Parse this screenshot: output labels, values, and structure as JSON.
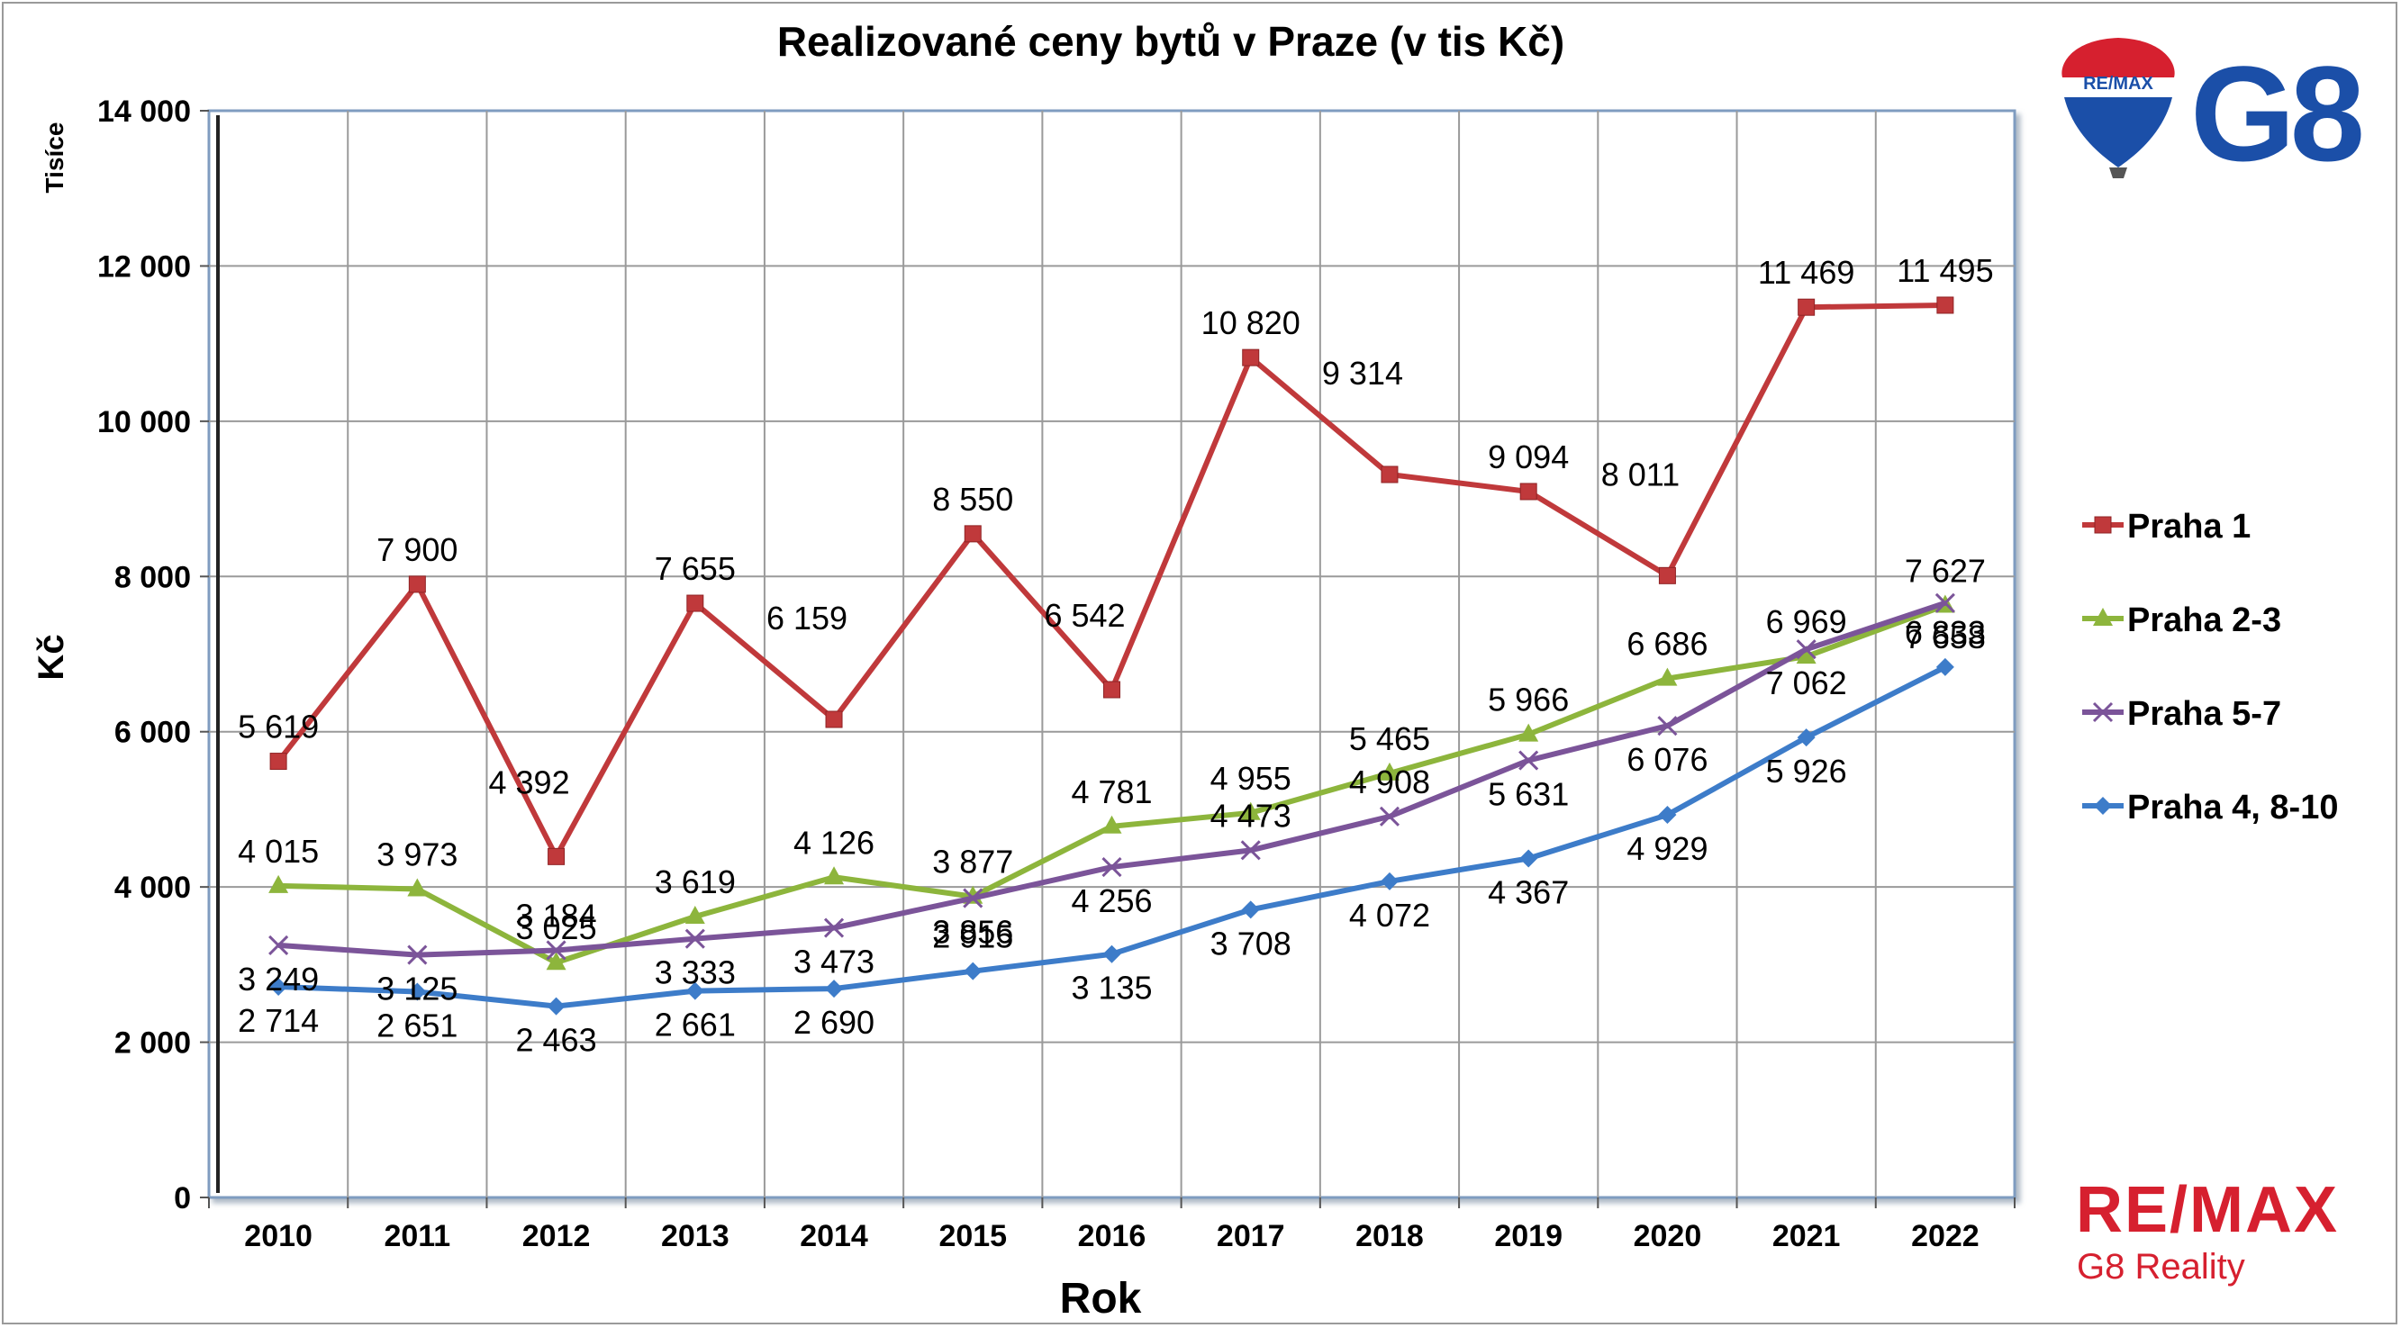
{
  "chart_data": {
    "type": "line",
    "title": "Realizované ceny bytů v Praze (v tis Kč)",
    "xlabel": "Rok",
    "ylabel": "Kč",
    "y_unit_label": "Tisíce",
    "categories": [
      "2010",
      "2011",
      "2012",
      "2013",
      "2014",
      "2015",
      "2016",
      "2017",
      "2018",
      "2019",
      "2020",
      "2021",
      "2022"
    ],
    "ylim": [
      0,
      14000
    ],
    "yticks": [
      0,
      2000,
      4000,
      6000,
      8000,
      10000,
      12000,
      14000
    ],
    "ytick_labels": [
      "0",
      "2 000",
      "4 000",
      "6 000",
      "8 000",
      "10 000",
      "12 000",
      "14 000"
    ],
    "grid": true,
    "legend_position": "right",
    "series": [
      {
        "name": "Praha 1",
        "color": "#c0393b",
        "marker": "square",
        "values": [
          5619,
          7900,
          4392,
          7655,
          6159,
          8550,
          6542,
          10820,
          9314,
          9094,
          8011,
          11469,
          11495
        ],
        "labels": [
          "5 619",
          "7 900",
          "4 392",
          "7 655",
          "6 159",
          "8 550",
          "6 542",
          "10 820",
          "9 314",
          "9 094",
          "8 011",
          "11 469",
          "11 495"
        ]
      },
      {
        "name": "Praha 2-3",
        "color": "#8db53c",
        "marker": "triangle",
        "values": [
          4015,
          3973,
          3025,
          3619,
          4126,
          3877,
          4781,
          4955,
          5465,
          5966,
          6686,
          6969,
          7627
        ],
        "labels": [
          "4 015",
          "3 973",
          "3 025",
          "3 619",
          "4 126",
          "3 877",
          "4 781",
          "4 955",
          "5 465",
          "5 966",
          "6 686",
          "6 969",
          "7 627"
        ]
      },
      {
        "name": "Praha 5-7",
        "color": "#7b5499",
        "marker": "x",
        "values": [
          3249,
          3125,
          3184,
          3333,
          3473,
          3856,
          4256,
          4473,
          4908,
          5631,
          6076,
          7062,
          7658
        ],
        "labels": [
          "3 249",
          "3 125",
          "3 184",
          "3 333",
          "3 473",
          "3 856",
          "4 256",
          "4 473",
          "4 908",
          "5 631",
          "6 076",
          "7 062",
          "7 658"
        ]
      },
      {
        "name": "Praha 4, 8-10",
        "color": "#3d7cc9",
        "marker": "diamond",
        "values": [
          2714,
          2651,
          2463,
          2661,
          2690,
          2915,
          3135,
          3708,
          4072,
          4367,
          4929,
          5926,
          6833
        ],
        "labels": [
          "2 714",
          "2 651",
          "2 463",
          "2 661",
          "2 690",
          "2 915",
          "3 135",
          "3 708",
          "4 072",
          "4 367",
          "4 929",
          "5 926",
          "6 833"
        ]
      }
    ]
  },
  "branding": {
    "balloon_text": "RE/MAX",
    "g8_text": "G8",
    "remax_text": "RE/MAX",
    "reality_text": "G8 Reality",
    "red": "#d6202f",
    "blue": "#1b4fa8"
  }
}
